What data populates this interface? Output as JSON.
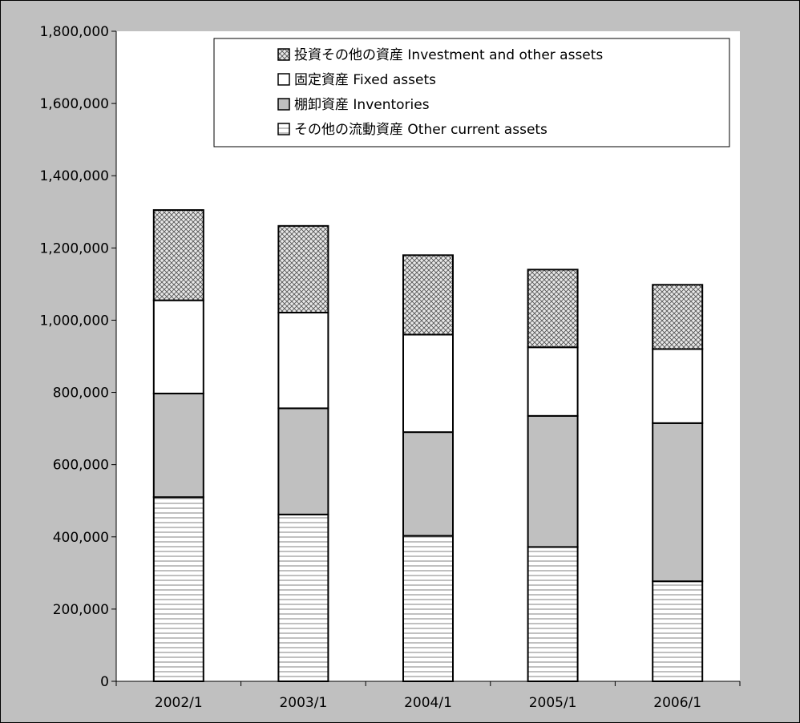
{
  "chart_data": {
    "type": "bar",
    "stacked": true,
    "title": "",
    "xlabel": "",
    "ylabel": "",
    "categories": [
      "2002/1",
      "2003/1",
      "2004/1",
      "2005/1",
      "2006/1"
    ],
    "ylim": [
      0,
      1800000
    ],
    "yticks": [
      0,
      200000,
      400000,
      600000,
      800000,
      1000000,
      1200000,
      1400000,
      1600000,
      1800000
    ],
    "ytick_labels": [
      "0",
      "200,000",
      "400,000",
      "600,000",
      "800,000",
      "1,000,000",
      "1,200,000",
      "1,400,000",
      "1,600,000",
      "1,800,000"
    ],
    "grid": false,
    "legend_position": "top-right",
    "legend_order": [
      "investment",
      "fixed",
      "inventories",
      "other_current"
    ],
    "series": [
      {
        "key": "other_current",
        "name": "その他の流動資産 Other current assets",
        "pattern": "horizontal-lines",
        "values": [
          510000,
          462000,
          403000,
          372000,
          277000
        ]
      },
      {
        "key": "inventories",
        "name": "棚卸資産 Inventories",
        "pattern": "solid-gray",
        "values": [
          287000,
          294000,
          287000,
          363000,
          438000
        ]
      },
      {
        "key": "fixed",
        "name": "固定資産 Fixed assets",
        "pattern": "white",
        "values": [
          258000,
          265000,
          270000,
          190000,
          205000
        ]
      },
      {
        "key": "investment",
        "name": "投資その他の資産 Investment and other assets",
        "pattern": "crosshatch",
        "values": [
          250000,
          240000,
          220000,
          215000,
          178000
        ]
      }
    ],
    "colors": {
      "plot_bg": "#ffffff",
      "chart_bg": "#c0c0c0",
      "inventories_fill": "#c0c0c0",
      "bar_stroke": "#000000"
    }
  }
}
